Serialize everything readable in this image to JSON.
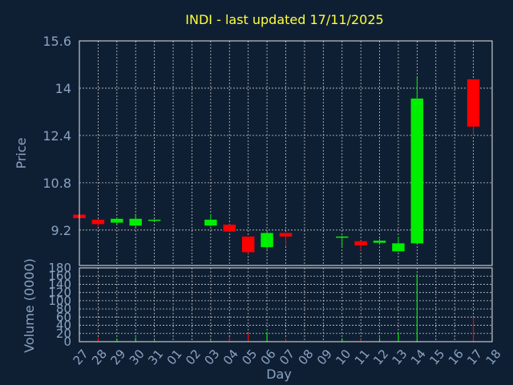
{
  "chart_data": [
    {
      "type": "candlestick",
      "title": "INDI - last updated 17/11/2025",
      "ylabel": "Price",
      "ylim": [
        8.0,
        15.6
      ],
      "yticks": [
        "9.2",
        "10.8",
        "12.4",
        "14",
        "15.6"
      ],
      "ytick_values": [
        9.2,
        10.8,
        12.4,
        14.0,
        15.6
      ],
      "grid": true,
      "up_color": "#00ee00",
      "down_color": "#ff0000",
      "candles": [
        {
          "day": "27",
          "open": 9.72,
          "high": 9.74,
          "low": 9.58,
          "close": 9.6
        },
        {
          "day": "28",
          "open": 9.55,
          "high": 9.58,
          "low": 9.32,
          "close": 9.4
        },
        {
          "day": "29",
          "open": 9.45,
          "high": 9.62,
          "low": 9.4,
          "close": 9.58
        },
        {
          "day": "30",
          "open": 9.35,
          "high": 9.75,
          "low": 9.28,
          "close": 9.58
        },
        {
          "day": "31",
          "open": 9.52,
          "high": 9.56,
          "low": 9.5,
          "close": 9.55
        },
        {
          "day": "03",
          "open": 9.35,
          "high": 9.73,
          "low": 9.32,
          "close": 9.55
        },
        {
          "day": "04",
          "open": 9.38,
          "high": 9.4,
          "low": 9.12,
          "close": 9.15
        },
        {
          "day": "05",
          "open": 8.98,
          "high": 8.98,
          "low": 8.4,
          "close": 8.45
        },
        {
          "day": "06",
          "open": 8.62,
          "high": 9.15,
          "low": 8.55,
          "close": 9.1
        },
        {
          "day": "07",
          "open": 9.1,
          "high": 9.12,
          "low": 8.66,
          "close": 8.98
        },
        {
          "day": "10",
          "open": 8.95,
          "high": 9.0,
          "low": 8.62,
          "close": 8.98
        },
        {
          "day": "11",
          "open": 8.82,
          "high": 8.84,
          "low": 8.5,
          "close": 8.68
        },
        {
          "day": "12",
          "open": 8.77,
          "high": 8.9,
          "low": 8.7,
          "close": 8.84
        },
        {
          "day": "13",
          "open": 8.48,
          "high": 8.98,
          "low": 8.47,
          "close": 8.75
        },
        {
          "day": "14",
          "open": 8.75,
          "high": 14.35,
          "low": 8.75,
          "close": 13.65
        },
        {
          "day": "17",
          "open": 14.3,
          "high": 14.3,
          "low": 12.4,
          "close": 12.7
        }
      ]
    },
    {
      "type": "bar",
      "ylabel": "Volume (0000)",
      "ylim": [
        0,
        180
      ],
      "yticks": [
        "0",
        "20",
        "40",
        "60",
        "80",
        "100",
        "120",
        "140",
        "160",
        "180"
      ],
      "ytick_values": [
        0,
        20,
        40,
        60,
        80,
        100,
        120,
        140,
        160,
        180
      ],
      "xlabel": "Day",
      "categories": [
        "27",
        "28",
        "29",
        "30",
        "31",
        "01",
        "02",
        "03",
        "04",
        "05",
        "06",
        "07",
        "08",
        "09",
        "10",
        "11",
        "12",
        "13",
        "14",
        "15",
        "16",
        "17",
        "18"
      ],
      "values": [
        0.5,
        10,
        7,
        10,
        3,
        0,
        0,
        3,
        11,
        20,
        24,
        8,
        0,
        0,
        8,
        6,
        10,
        22,
        165,
        0,
        0,
        60,
        0
      ],
      "colors": [
        "#ff0000",
        "#ff0000",
        "#00ee00",
        "#00ee00",
        "#00ee00",
        "#ff0000",
        "#ff0000",
        "#00ee00",
        "#ff0000",
        "#ff0000",
        "#00ee00",
        "#ff0000",
        "#ff0000",
        "#ff0000",
        "#00ee00",
        "#ff0000",
        "#00ee00",
        "#00ee00",
        "#00ee00",
        "#ff0000",
        "#ff0000",
        "#ff0000",
        "#ff0000"
      ]
    }
  ]
}
